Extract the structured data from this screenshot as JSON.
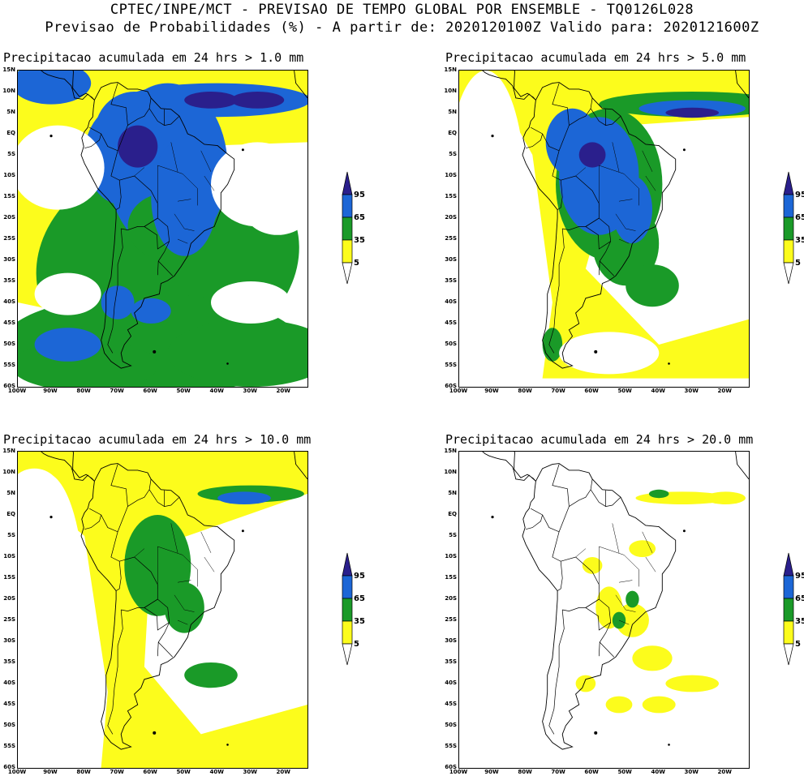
{
  "header": {
    "line1": "CPTEC/INPE/MCT - PREVISAO DE TEMPO GLOBAL POR ENSEMBLE - TQ0126L028",
    "line2": "Previsao de Probabilidades (%) -  A partir de: 2020120100Z  Valido para: 2020121600Z"
  },
  "axes": {
    "lat_labels": [
      "15N",
      "10N",
      "5N",
      "EQ",
      "5S",
      "10S",
      "15S",
      "20S",
      "25S",
      "30S",
      "35S",
      "40S",
      "45S",
      "50S",
      "55S",
      "60S"
    ],
    "lon_labels": [
      "100W",
      "90W",
      "80W",
      "70W",
      "60W",
      "50W",
      "40W",
      "30W",
      "20W"
    ]
  },
  "legend": {
    "levels": [
      "95",
      "65",
      "35",
      "5"
    ],
    "colors": {
      "very_high": "#2a1f8c",
      "high": "#1c66d6",
      "mid": "#1a9a28",
      "low": "#fcfc1c",
      "none": "#ffffff"
    }
  },
  "panels": [
    {
      "id": "p1",
      "title": "Precipitacao acumulada em 24 hrs > 1.0 mm",
      "threshold_mm": 1.0
    },
    {
      "id": "p2",
      "title": "Precipitacao acumulada em 24 hrs > 5.0 mm",
      "threshold_mm": 5.0
    },
    {
      "id": "p3",
      "title": "Precipitacao acumulada em 24 hrs > 10.0 mm",
      "threshold_mm": 10.0
    },
    {
      "id": "p4",
      "title": "Precipitacao acumulada em 24 hrs > 20.0 mm",
      "threshold_mm": 20.0
    }
  ]
}
